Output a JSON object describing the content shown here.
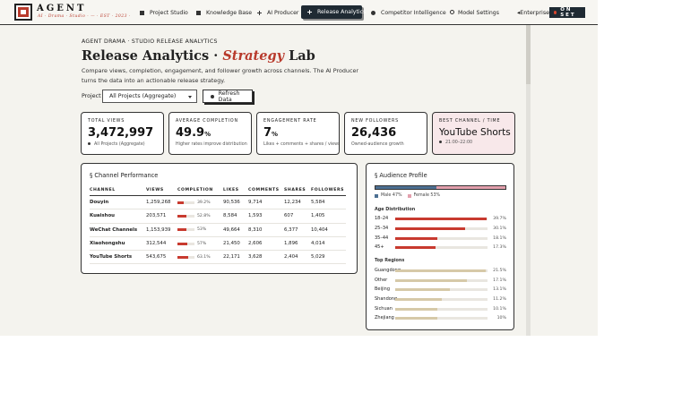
{
  "brand": {
    "name": "AGENT",
    "tagline": "AI · Drama · Studio · — · EST · 2023 ·"
  },
  "nav": {
    "items": [
      {
        "label": "Project Studio",
        "icon": "square-icon"
      },
      {
        "label": "Knowledge Base",
        "icon": "square-icon"
      },
      {
        "label": "AI Producer",
        "icon": "plus-icon"
      },
      {
        "label": "Release Analytics",
        "icon": "plus-icon",
        "active": true
      },
      {
        "label": "Competitor Intelligence",
        "icon": "dot-icon"
      },
      {
        "label": "Model Settings",
        "icon": "gear-icon"
      }
    ],
    "tier": "Enterprise",
    "status": "ON SET"
  },
  "header": {
    "breadcrumb": "AGENT DRAMA · STUDIO RELEASE ANALYTICS",
    "title_prefix": "Release Analytics ·",
    "title_accent": "Strategy",
    "title_suffix": "Lab",
    "description": "Compare views, completion, engagement, and follower growth across channels. The AI Producer turns the data into an actionable release strategy."
  },
  "controls": {
    "project_label": "Project",
    "project_value": "All Projects (Aggregate)",
    "refresh_label": "Refresh Data"
  },
  "kpis": [
    {
      "label": "TOTAL VIEWS",
      "value": "3,472,997",
      "unit": "",
      "sub": "All Projects (Aggregate)"
    },
    {
      "label": "AVERAGE COMPLETION",
      "value": "49.9",
      "unit": "%",
      "sub": "Higher rates improve distribution"
    },
    {
      "label": "ENGAGEMENT RATE",
      "value": "7",
      "unit": "%",
      "sub": "Likes + comments + shares / views"
    },
    {
      "label": "NEW FOLLOWERS",
      "value": "26,436",
      "unit": "",
      "sub": "Owned-audience growth"
    },
    {
      "label": "BEST CHANNEL / TIME",
      "value": "YouTube Shorts",
      "unit": "",
      "sub": "21:00–22:00"
    }
  ],
  "channel_performance": {
    "title": "Channel Performance",
    "headers": [
      "CHANNEL",
      "VIEWS",
      "COMPLETION",
      "LIKES",
      "COMMENTS",
      "SHARES",
      "FOLLOWERS"
    ],
    "rows": [
      {
        "channel": "Douyin",
        "views": "1,259,268",
        "completion": "39.2%",
        "completion_pct": 39.2,
        "likes": "90,536",
        "comments": "9,714",
        "shares": "12,234",
        "followers": "5,584"
      },
      {
        "channel": "Kuaishou",
        "views": "203,571",
        "completion": "52.8%",
        "completion_pct": 52.8,
        "likes": "8,584",
        "comments": "1,593",
        "shares": "607",
        "followers": "1,405"
      },
      {
        "channel": "WeChat Channels",
        "views": "1,153,939",
        "completion": "53%",
        "completion_pct": 53,
        "likes": "49,664",
        "comments": "8,310",
        "shares": "6,377",
        "followers": "10,404"
      },
      {
        "channel": "Xiaohongshu",
        "views": "312,544",
        "completion": "57%",
        "completion_pct": 57,
        "likes": "21,450",
        "comments": "2,606",
        "shares": "1,896",
        "followers": "4,014"
      },
      {
        "channel": "YouTube Shorts",
        "views": "543,675",
        "completion": "63.1%",
        "completion_pct": 63.1,
        "likes": "22,171",
        "comments": "3,628",
        "shares": "2,404",
        "followers": "5,029"
      }
    ]
  },
  "audience": {
    "title": "Audience Profile",
    "gender": {
      "male_label": "Male 47%",
      "female_label": "Female 53%",
      "male_pct": 47,
      "female_pct": 53
    },
    "age_title": "Age Distribution",
    "ages": [
      {
        "label": "18–24",
        "value": "39.7%",
        "pct": 39.7
      },
      {
        "label": "25–34",
        "value": "30.1%",
        "pct": 30.1
      },
      {
        "label": "35–44",
        "value": "18.1%",
        "pct": 18.1
      },
      {
        "label": "45+",
        "value": "17.3%",
        "pct": 17.3
      }
    ],
    "regions_title": "Top Regions",
    "regions": [
      {
        "label": "Guangdong",
        "value": "21.5%",
        "pct": 21.5
      },
      {
        "label": "Other",
        "value": "17.1%",
        "pct": 17.1
      },
      {
        "label": "Beijing",
        "value": "13.1%",
        "pct": 13.1
      },
      {
        "label": "Shandong",
        "value": "11.2%",
        "pct": 11.2
      },
      {
        "label": "Sichuan",
        "value": "10.1%",
        "pct": 10.1
      },
      {
        "label": "Zhejiang",
        "value": "10%",
        "pct": 10
      }
    ]
  },
  "colors": {
    "accent": "#b83a2c",
    "dark": "#1f2a33",
    "male": "#4c6f92",
    "female": "#e3a0ad",
    "bar": "#c83a2f",
    "region_bar": "#d6c9a8"
  }
}
